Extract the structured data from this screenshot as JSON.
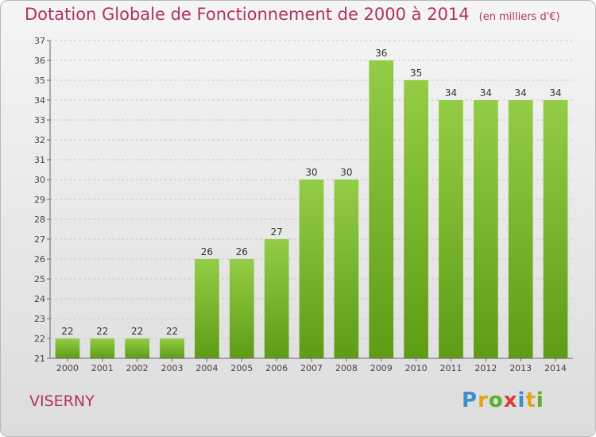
{
  "chart_data": {
    "type": "bar",
    "title": "Dotation Globale de Fonctionnement de 2000 à 2014",
    "subtitle": "(en milliers d'€)",
    "categories": [
      "2000",
      "2001",
      "2002",
      "2003",
      "2004",
      "2005",
      "2006",
      "2007",
      "2008",
      "2009",
      "2010",
      "2011",
      "2012",
      "2013",
      "2014"
    ],
    "values": [
      22,
      22,
      22,
      22,
      26,
      26,
      27,
      30,
      30,
      36,
      35,
      34,
      34,
      34,
      34
    ],
    "ylim": [
      21,
      37
    ],
    "yticks": [
      21,
      22,
      23,
      24,
      25,
      26,
      27,
      28,
      29,
      30,
      31,
      32,
      33,
      34,
      35,
      36,
      37
    ],
    "grid": true,
    "bar_color": "#8cc63f",
    "bar_color_dark": "#5a9a12"
  },
  "footer": {
    "commune": "VISERNY",
    "brand": [
      "P",
      "r",
      "o",
      "x",
      "i",
      "t",
      "i"
    ]
  }
}
